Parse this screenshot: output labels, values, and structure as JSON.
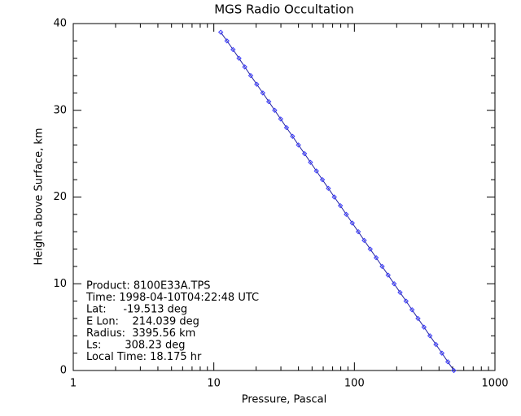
{
  "chart_data": {
    "type": "line",
    "title": "MGS Radio Occultation",
    "x_label": "Pressure, Pascal",
    "y_label": "Height above Surface, km",
    "x_scale": "log",
    "xlim": [
      1,
      1000
    ],
    "xticks": [
      1,
      10,
      100,
      1000
    ],
    "xminorticks": [
      2,
      3,
      4,
      5,
      6,
      7,
      8,
      9,
      20,
      30,
      40,
      50,
      60,
      70,
      80,
      90,
      200,
      300,
      400,
      500,
      600,
      700,
      800,
      900
    ],
    "ylim": [
      0,
      40
    ],
    "yticks": [
      0,
      10,
      20,
      30,
      40
    ],
    "yminorticks": [
      2,
      4,
      6,
      8,
      12,
      14,
      16,
      18,
      22,
      24,
      26,
      28,
      32,
      34,
      36,
      38
    ],
    "line_color": "#2020a0",
    "marker_color": "#3a3aff",
    "x": [
      510,
      462.5,
      419.4,
      380.3,
      344.8,
      312.7,
      283.5,
      257.1,
      233.1,
      211.4,
      191.7,
      173.8,
      157.6,
      142.9,
      129.6,
      117.5,
      106.6,
      96.6,
      87.6,
      79.5,
      72.0,
      65.3,
      59.2,
      53.7,
      48.7,
      44.2,
      40.0,
      36.3,
      32.9,
      29.9,
      27.1,
      24.6,
      22.3,
      20.2,
      18.3,
      16.6,
      15.1,
      13.7,
      12.4,
      11.2
    ],
    "values": [
      0,
      1,
      2,
      3,
      4,
      5,
      6,
      7,
      8,
      9,
      10,
      11,
      12,
      13,
      14,
      15,
      16,
      17,
      18,
      19,
      20,
      21,
      22,
      23,
      24,
      25,
      26,
      27,
      28,
      29,
      30,
      31,
      32,
      33,
      34,
      35,
      36,
      37,
      38,
      39
    ],
    "annotations": [
      "Product: 8100E33A.TPS",
      "Time: 1998-04-10T04:22:48 UTC",
      "Lat:     -19.513 deg",
      "E Lon:    214.039 deg",
      "Radius:  3395.56 km",
      "Ls:       308.23 deg",
      "Local Time: 18.175 hr"
    ]
  }
}
